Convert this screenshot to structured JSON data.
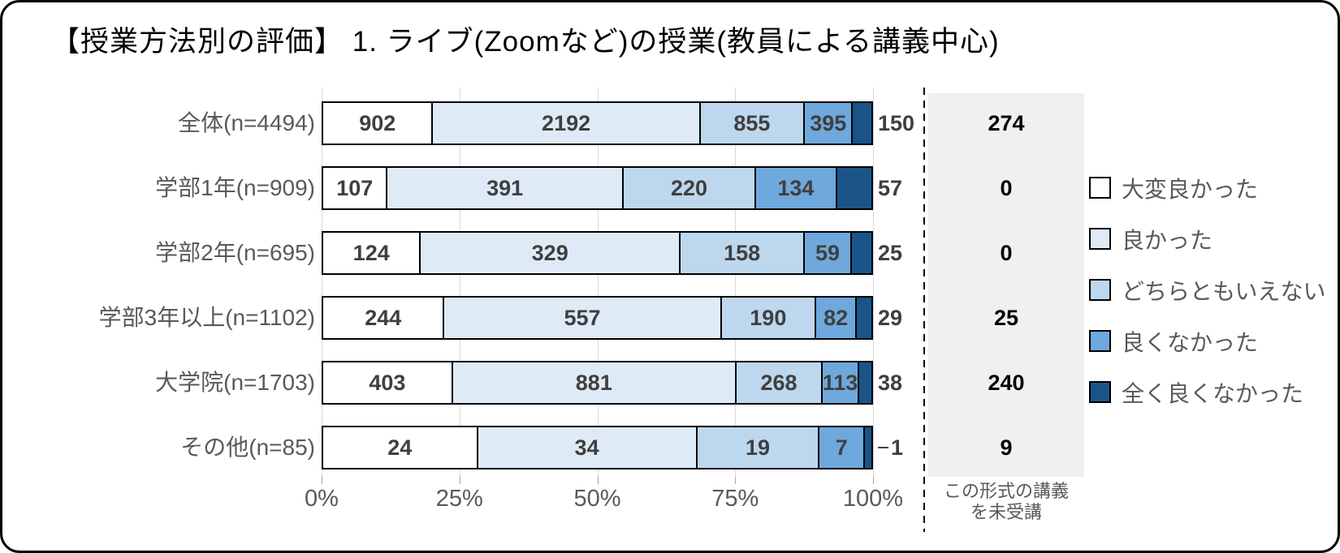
{
  "title": "【授業方法別の評価】 1. ライブ(Zoomなど)の授業(教員による講義中心)",
  "chart_data": {
    "type": "bar",
    "orientation": "horizontal",
    "stacked": true,
    "note": "segment widths are each value divided by the row total (values per row sum to n)",
    "categories": [
      "全体(n=4494)",
      "学部1年(n=909)",
      "学部2年(n=695)",
      "学部3年以上(n=1102)",
      "大学院(n=1703)",
      "その他(n=85)"
    ],
    "series": [
      {
        "name": "大変良かった",
        "color": "#FFFFFF",
        "values": [
          902,
          107,
          124,
          244,
          403,
          24
        ]
      },
      {
        "name": "良かった",
        "color": "#DEEBF7",
        "values": [
          2192,
          391,
          329,
          557,
          881,
          34
        ]
      },
      {
        "name": "どちらともいえない",
        "color": "#BDD7EE",
        "values": [
          855,
          220,
          158,
          190,
          268,
          19
        ]
      },
      {
        "name": "良くなかった",
        "color": "#6FA8DC",
        "values": [
          395,
          134,
          59,
          82,
          113,
          7
        ]
      },
      {
        "name": "全く良くなかった",
        "color": "#1B5488",
        "values": [
          150,
          57,
          25,
          29,
          38,
          1
        ]
      }
    ],
    "last_series_labels_outside": true,
    "leader_rows": [
      5
    ],
    "not_attended": {
      "label_line1": "この形式の講義",
      "label_line2": "を未受講",
      "values": [
        274,
        0,
        0,
        25,
        240,
        9
      ],
      "panel_color": "#F0F0F0"
    },
    "x_ticks": [
      "0%",
      "25%",
      "50%",
      "75%",
      "100%"
    ],
    "x_tick_values": [
      0,
      25,
      50,
      75,
      100
    ],
    "xlim": [
      0,
      100
    ],
    "grid": true,
    "legend_position": "right",
    "style": {
      "grid_color": "#D9D9D9",
      "axis_label_color": "#595959",
      "value_label_color": "#3F3F3F",
      "bar_border_color": "#000000",
      "divider_line": "dashed-black"
    }
  }
}
